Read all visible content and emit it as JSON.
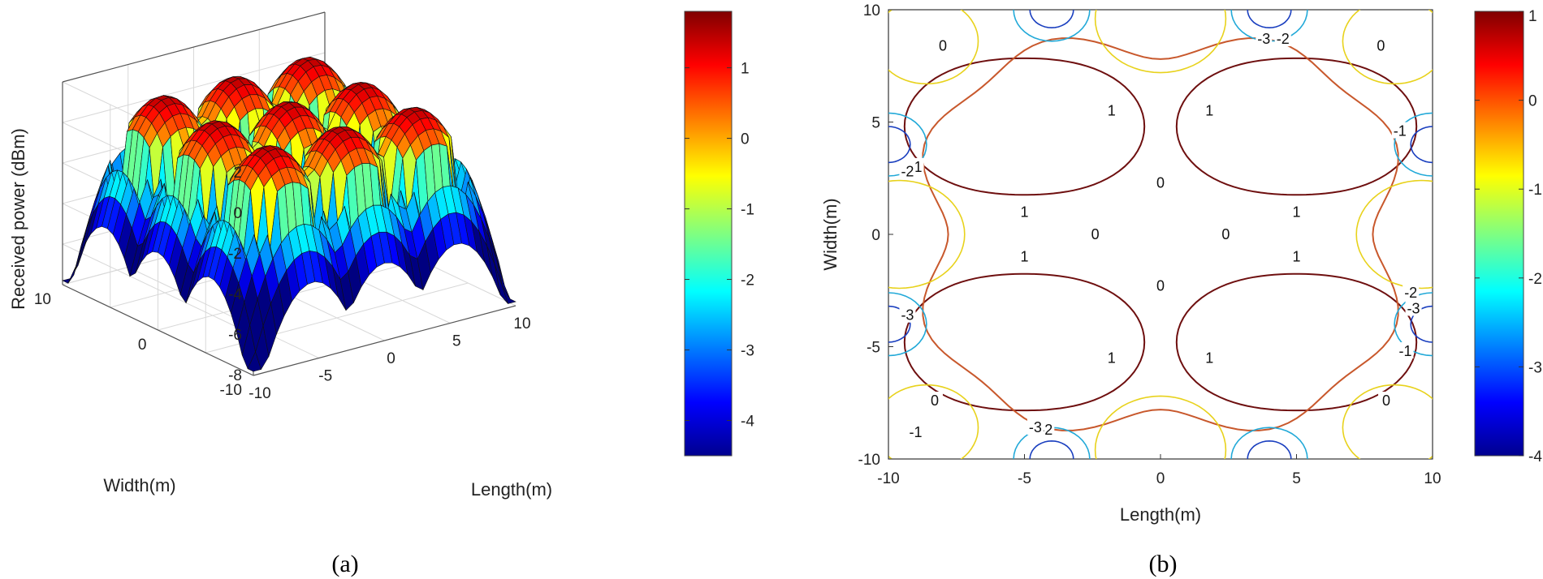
{
  "chart_data": [
    {
      "id": "a",
      "type": "surface",
      "caption": "(a)",
      "title": "",
      "xlabel": "Length(m)",
      "ylabel": "Width(m)",
      "zlabel": "Received power (dBm)",
      "xlim": [
        -10,
        10
      ],
      "ylim": [
        -10,
        10
      ],
      "zlim": [
        -8,
        2
      ],
      "x_ticks": [
        -10,
        -5,
        0,
        5,
        10
      ],
      "y_ticks": [
        -10,
        0,
        10
      ],
      "z_ticks": [
        -8,
        -6,
        -4,
        -2,
        0,
        2
      ],
      "grid": true,
      "colorbar": {
        "location": "right",
        "range": [
          -4.5,
          1.8
        ],
        "ticks": [
          -4,
          -3,
          -2,
          -1,
          0,
          1
        ]
      },
      "description_values": {
        "peak_level_dBm": 1.5,
        "edge_level_dBm": -2,
        "deepest_dip_dBm": -7.8
      }
    },
    {
      "id": "b",
      "type": "contour",
      "caption": "(b)",
      "title": "",
      "xlabel": "Length(m)",
      "ylabel": "Width(m)",
      "xlim": [
        -10,
        10
      ],
      "ylim": [
        -10,
        10
      ],
      "x_ticks": [
        -10,
        -5,
        0,
        5,
        10
      ],
      "y_ticks": [
        -10,
        -5,
        0,
        5,
        10
      ],
      "contour_levels": [
        -3,
        -2,
        -1,
        0,
        1
      ],
      "colorbar": {
        "location": "right",
        "range": [
          -4,
          1
        ],
        "ticks": [
          -4,
          -3,
          -2,
          -1,
          0,
          1
        ]
      }
    }
  ]
}
